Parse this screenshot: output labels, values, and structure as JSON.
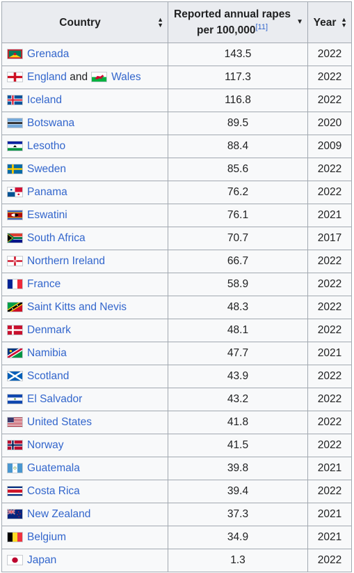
{
  "table": {
    "headers": {
      "country": "Country",
      "rate_line1": "Reported annual rapes",
      "rate_line2": "per 100,000",
      "rate_ref": "[11]",
      "year": "Year"
    },
    "rows": [
      {
        "country": "Grenada",
        "rate": "143.5",
        "year": "2022",
        "flag": "flag-grenada"
      },
      {
        "country": "England",
        "joiner": "and",
        "country2": "Wales",
        "rate": "117.3",
        "year": "2022",
        "flag": "flag-england",
        "flag2": "flag-wales"
      },
      {
        "country": "Iceland",
        "rate": "116.8",
        "year": "2022",
        "flag": "flag-iceland"
      },
      {
        "country": "Botswana",
        "rate": "89.5",
        "year": "2020",
        "flag": "flag-botswana"
      },
      {
        "country": "Lesotho",
        "rate": "88.4",
        "year": "2009",
        "flag": "flag-lesotho"
      },
      {
        "country": "Sweden",
        "rate": "85.6",
        "year": "2022",
        "flag": "flag-sweden"
      },
      {
        "country": "Panama",
        "rate": "76.2",
        "year": "2022",
        "flag": "flag-panama"
      },
      {
        "country": "Eswatini",
        "rate": "76.1",
        "year": "2021",
        "flag": "flag-eswatini"
      },
      {
        "country": "South Africa",
        "rate": "70.7",
        "year": "2017",
        "flag": "flag-south-africa"
      },
      {
        "country": "Northern Ireland",
        "rate": "66.7",
        "year": "2022",
        "flag": "flag-northern-ireland"
      },
      {
        "country": "France",
        "rate": "58.9",
        "year": "2022",
        "flag": "flag-france"
      },
      {
        "country": "Saint Kitts and Nevis",
        "rate": "48.3",
        "year": "2022",
        "flag": "flag-saint-kitts"
      },
      {
        "country": "Denmark",
        "rate": "48.1",
        "year": "2022",
        "flag": "flag-denmark"
      },
      {
        "country": "Namibia",
        "rate": "47.7",
        "year": "2021",
        "flag": "flag-namibia"
      },
      {
        "country": "Scotland",
        "rate": "43.9",
        "year": "2022",
        "flag": "flag-scotland"
      },
      {
        "country": "El Salvador",
        "rate": "43.2",
        "year": "2022",
        "flag": "flag-el-salvador"
      },
      {
        "country": "United States",
        "rate": "41.8",
        "year": "2022",
        "flag": "flag-united-states"
      },
      {
        "country": "Norway",
        "rate": "41.5",
        "year": "2022",
        "flag": "flag-norway"
      },
      {
        "country": "Guatemala",
        "rate": "39.8",
        "year": "2021",
        "flag": "flag-guatemala"
      },
      {
        "country": "Costa Rica",
        "rate": "39.4",
        "year": "2022",
        "flag": "flag-costa-rica"
      },
      {
        "country": "New Zealand",
        "rate": "37.3",
        "year": "2021",
        "flag": "flag-new-zealand"
      },
      {
        "country": "Belgium",
        "rate": "34.9",
        "year": "2021",
        "flag": "flag-belgium"
      },
      {
        "country": "Japan",
        "rate": "1.3",
        "year": "2022",
        "flag": "flag-japan"
      }
    ]
  },
  "colors": {
    "link": "#3366cc",
    "header_bg": "#eaecf0",
    "cell_bg": "#f8f9fa",
    "border": "#a2a9b1",
    "text": "#202122"
  }
}
